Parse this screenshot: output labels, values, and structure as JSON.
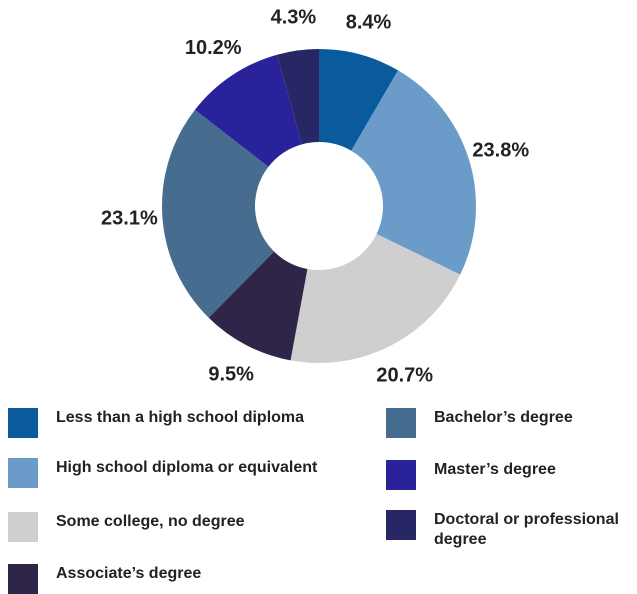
{
  "chart_data": {
    "type": "pie",
    "donut": true,
    "title": "",
    "slices": [
      {
        "label": "Less than a high school diploma",
        "value": 8.4,
        "display": "8.4%",
        "color": "#0a5a9e"
      },
      {
        "label": "High school diploma or equivalent",
        "value": 23.8,
        "display": "23.8%",
        "color": "#6b9bc8"
      },
      {
        "label": "Some college, no degree",
        "value": 20.7,
        "display": "20.7%",
        "color": "#cfcfcf"
      },
      {
        "label": "Associate’s degree",
        "value": 9.5,
        "display": "9.5%",
        "color": "#2e2548"
      },
      {
        "label": "Bachelor’s degree",
        "value": 23.1,
        "display": "23.1%",
        "color": "#466d90"
      },
      {
        "label": "Master’s degree",
        "value": 10.2,
        "display": "10.2%",
        "color": "#2a229a"
      },
      {
        "label": "Doctoral or professional degree",
        "value": 4.3,
        "display": "4.3%",
        "color": "#272766"
      }
    ],
    "legend_position": "bottom"
  }
}
